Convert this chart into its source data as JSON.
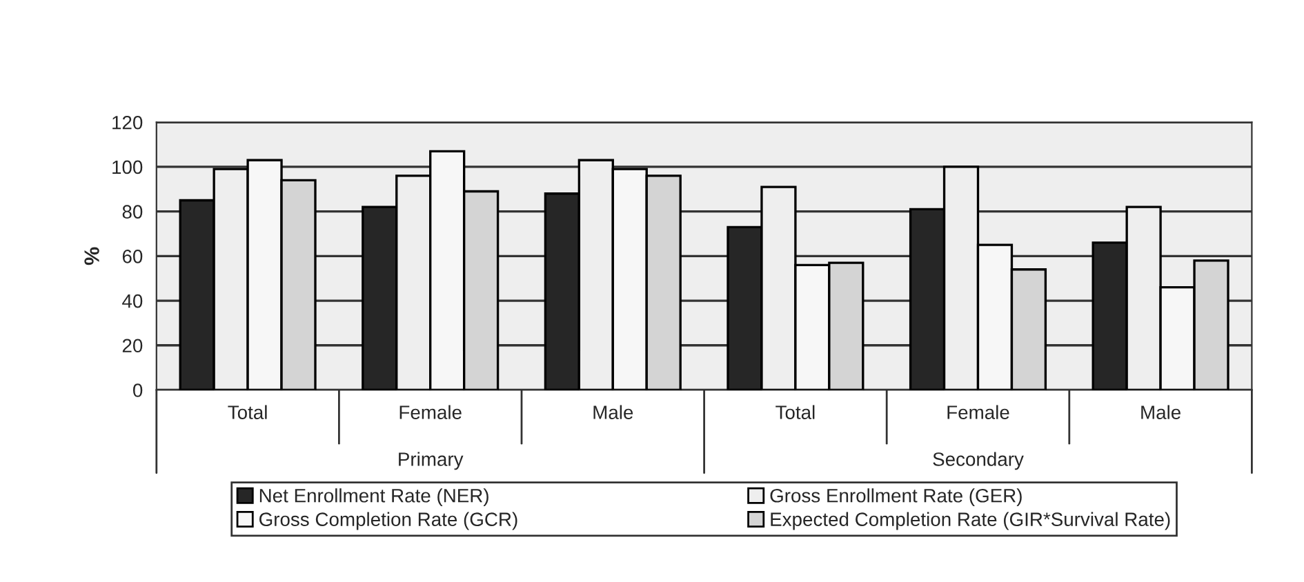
{
  "chart_data": {
    "type": "bar",
    "ylabel": "%",
    "categories": [
      "Total",
      "Female",
      "Male",
      "Total",
      "Female",
      "Male"
    ],
    "annotations": [
      "Primary",
      "Secondary"
    ],
    "series": [
      {
        "name": "Net Enrollment Rate (NER)",
        "color": "#262626",
        "values": [
          85,
          82,
          88,
          73,
          81,
          66
        ]
      },
      {
        "name": "Gross Enrollment Rate (GER)",
        "color": "#eeeeee",
        "values": [
          99,
          96,
          103,
          91,
          100,
          82
        ]
      },
      {
        "name": "Gross Completion Rate (GCR)",
        "color": "#f7f7f7",
        "values": [
          103,
          107,
          99,
          56,
          65,
          46
        ]
      },
      {
        "name": "Expected Completion Rate (GIR*Survival Rate)",
        "color": "#d4d4d4",
        "values": [
          94,
          89,
          96,
          57,
          54,
          58
        ]
      }
    ],
    "ylim": [
      0,
      120
    ],
    "yticks": [
      0,
      20,
      40,
      60,
      80,
      100,
      120
    ],
    "grid": "y",
    "legend": "bottom"
  }
}
